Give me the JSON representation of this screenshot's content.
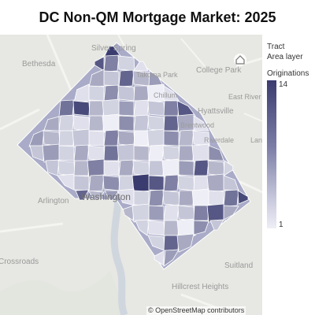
{
  "title": "DC Non-QM Mortgage Market: 2025",
  "places": [
    {
      "name": "Silver Spring",
      "size": "normal"
    },
    {
      "name": "Bethesda",
      "size": "normal"
    },
    {
      "name": "College Park",
      "size": "normal"
    },
    {
      "name": "Takoma Park",
      "size": "normal"
    },
    {
      "name": "Chillum",
      "size": "normal"
    },
    {
      "name": "East River",
      "size": "small"
    },
    {
      "name": "Hyattsville",
      "size": "normal"
    },
    {
      "name": "Brentwood",
      "size": "small"
    },
    {
      "name": "Riverdale",
      "size": "small"
    },
    {
      "name": "Lanham",
      "size": "small"
    },
    {
      "name": "Washington",
      "size": "big"
    },
    {
      "name": "Arlington",
      "size": "normal"
    },
    {
      "name": "Crossroads",
      "size": "normal"
    },
    {
      "name": "Suitland",
      "size": "normal"
    },
    {
      "name": "Hillcrest Heights",
      "size": "normal"
    }
  ],
  "legend": {
    "layer_name": "Tract",
    "layer_type": "Area layer",
    "measure": "Originations",
    "max": "14",
    "min": "1",
    "color_high": "#3a3c6f",
    "color_low": "#eeeef6"
  },
  "attribution": "© OpenStreetMap contributors",
  "tract_originations": [
    14,
    12,
    9,
    3,
    2,
    6,
    4,
    11,
    5,
    7,
    2,
    3,
    8,
    4,
    6,
    1,
    2,
    10,
    13,
    5,
    3,
    7,
    2,
    4,
    9,
    12,
    6,
    3,
    2,
    5,
    1,
    8,
    4,
    3,
    11,
    6,
    2,
    7,
    5,
    3,
    4,
    2,
    9,
    6,
    1,
    3,
    8,
    5,
    2,
    4,
    7,
    3,
    6,
    2,
    10,
    4,
    5,
    1,
    3,
    6,
    2,
    8,
    4,
    3,
    5,
    9,
    2,
    6,
    3,
    4,
    1,
    7,
    12,
    5,
    3,
    2,
    4,
    6,
    8,
    3
  ]
}
